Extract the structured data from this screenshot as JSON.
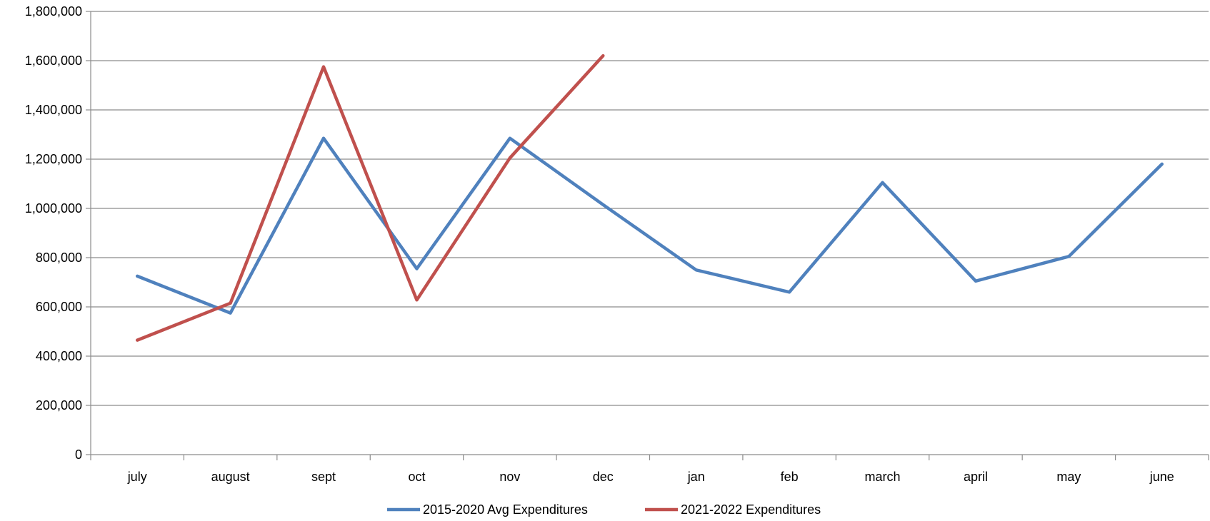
{
  "chart_data": {
    "type": "line",
    "categories": [
      "july",
      "august",
      "sept",
      "oct",
      "nov",
      "dec",
      "jan",
      "feb",
      "march",
      "april",
      "may",
      "june"
    ],
    "ylim": [
      0,
      1800000
    ],
    "yticks": [
      0,
      200000,
      400000,
      600000,
      800000,
      1000000,
      1200000,
      1400000,
      1600000,
      1800000
    ],
    "ytick_labels": [
      "0",
      "200,000",
      "400,000",
      "600,000",
      "800,000",
      "1,000,000",
      "1,200,000",
      "1,400,000",
      "1,600,000",
      "1,800,000"
    ],
    "grid": true,
    "legend_position": "bottom",
    "series": [
      {
        "name": "2015-2020 Avg Expenditures",
        "color": "#4f81bd",
        "values": [
          725000,
          575000,
          1285000,
          755000,
          1285000,
          1015000,
          750000,
          660000,
          1105000,
          705000,
          805000,
          1180000
        ]
      },
      {
        "name": "2021-2022 Expenditures",
        "color": "#c0504d",
        "values": [
          465000,
          615000,
          1575000,
          628000,
          1205000,
          1620000,
          null,
          null,
          null,
          null,
          null,
          null
        ]
      }
    ]
  }
}
